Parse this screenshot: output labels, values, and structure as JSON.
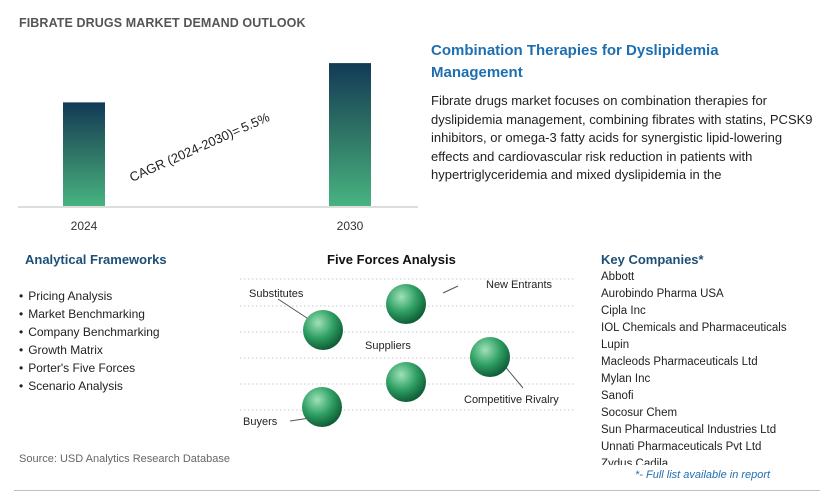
{
  "header": {
    "title": "FIBRATE DRUGS MARKET DEMAND OUTLOOK"
  },
  "chart_data": {
    "type": "bar",
    "categories": [
      "2024",
      "2030"
    ],
    "values": [
      1.0,
      1.379
    ],
    "cagr_label": "CAGR (2024-2030)=",
    "cagr_value": "5.5%",
    "ylim": [
      0,
      1.38
    ],
    "grid": false,
    "colors": {
      "bar_top": "#123a57",
      "bar_mid": "#2d6f63",
      "bar_bottom": "#47b380"
    }
  },
  "description": {
    "heading": "Combination Therapies for Dyslipidemia Management",
    "body": "Fibrate drugs market focuses on combination therapies for dyslipidemia management, combining fibrates with statins, PCSK9 inhibitors, or omega-3 fatty acids for synergistic lipid-lowering effects and cardiovascular risk reduction in patients with hypertriglyceridemia and mixed dyslipidemia in the"
  },
  "frameworks": {
    "title": "Analytical Frameworks",
    "items": [
      "Pricing Analysis",
      "Market Benchmarking",
      "Company Benchmarking",
      "Growth Matrix",
      "Porter's Five Forces",
      "Scenario Analysis"
    ]
  },
  "five_forces": {
    "title": "Five Forces Analysis",
    "labels": {
      "substitutes": "Substitutes",
      "new_entrants": "New Entrants",
      "suppliers": "Suppliers",
      "competitive_rivalry": "Competitive Rivalry",
      "buyers": "Buyers"
    },
    "sphere_colors": {
      "light": "#9fe2b8",
      "mid": "#2e9f63",
      "dark": "#0e5a34"
    }
  },
  "companies": {
    "title": "Key Companies*",
    "items": [
      "Abbott",
      "Aurobindo Pharma USA",
      "Cipla Inc",
      "IOL Chemicals and Pharmaceuticals",
      "Lupin",
      "Macleods Pharmaceuticals Ltd",
      "Mylan Inc",
      "Sanofi",
      "Socosur Chem",
      "Sun Pharmaceutical Industries Ltd",
      "Unnati Pharmaceuticals Pvt Ltd",
      "Zydus Cadila"
    ],
    "footnote": "*- Full list available in report"
  },
  "source": "Source: USD Analytics Research Database"
}
